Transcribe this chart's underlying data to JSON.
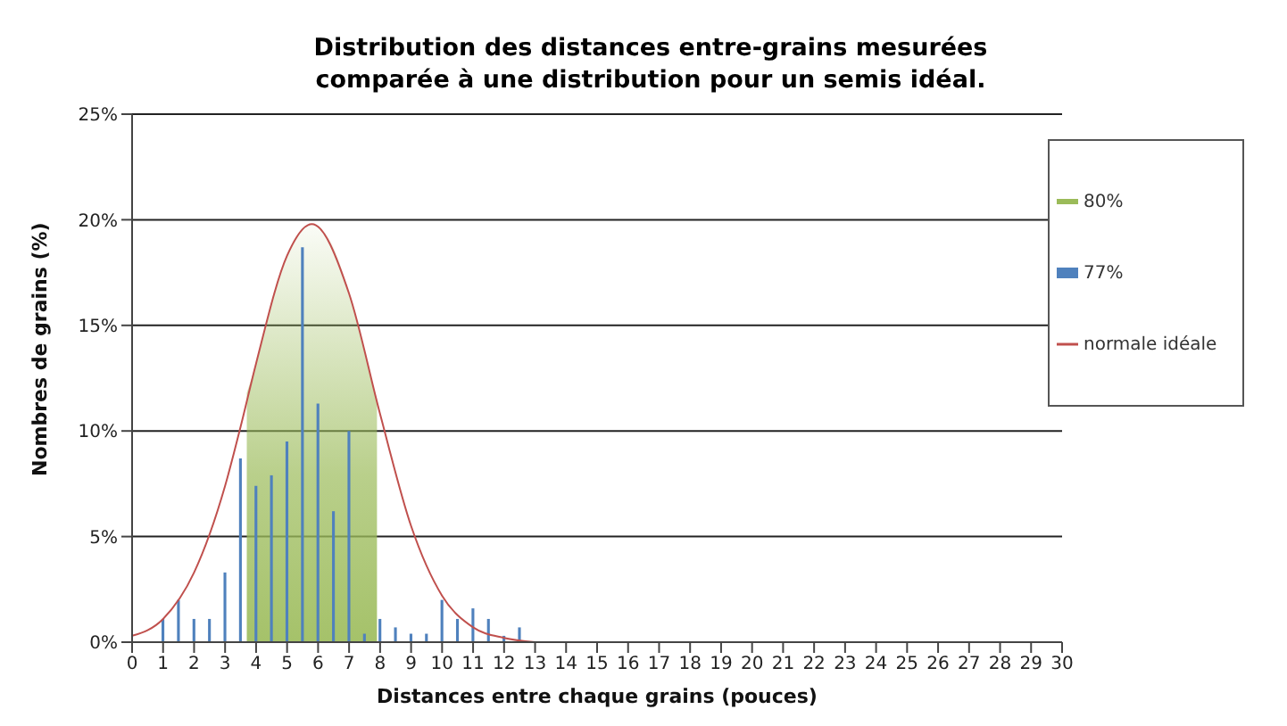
{
  "chart_data": {
    "type": "bar",
    "title": "Distribution des distances entre-grains mesurées comparée à une distribution pour un semis idéal.",
    "xlabel": "Distances entre chaque grains (pouces)",
    "ylabel": "Nombres de grains (%)",
    "series": [
      {
        "name": "80%",
        "type": "area",
        "color": "#9bbb59",
        "x": [
          3.7,
          4,
          4.5,
          5,
          5.5,
          5.8,
          6.5,
          7,
          7.5,
          7.9
        ],
        "values": [
          11.8,
          13.2,
          16.1,
          18.3,
          19.5,
          19.8,
          18.7,
          16.5,
          13.8,
          11.4
        ]
      },
      {
        "name": "77%",
        "color": "#4f81bd",
        "x": [
          1,
          1.5,
          2,
          2.5,
          3,
          3.5,
          4,
          4.5,
          5,
          5.5,
          6,
          6.5,
          7,
          7.5,
          8,
          8.5,
          9,
          9.5,
          10,
          10.5,
          11,
          11.5,
          12,
          12.5
        ],
        "values": [
          1.1,
          2.0,
          1.1,
          1.1,
          3.3,
          8.7,
          7.4,
          7.9,
          9.5,
          18.7,
          11.3,
          6.2,
          10.0,
          0.4,
          1.1,
          0.7,
          0.4,
          0.4,
          2.0,
          1.1,
          1.6,
          1.1,
          0.3,
          0.7
        ]
      },
      {
        "name": "normale idéale",
        "type": "line",
        "color": "#c0504d",
        "x": [
          0,
          1,
          2,
          3,
          3.5,
          4,
          5,
          5.8,
          7,
          8,
          9,
          10,
          11,
          12,
          13
        ],
        "values": [
          0.3,
          1.1,
          3.3,
          7.4,
          10.2,
          13.2,
          18.3,
          19.8,
          16.5,
          10.8,
          5.5,
          2.2,
          0.7,
          0.2,
          0.0
        ]
      }
    ],
    "xlim": [
      0,
      30
    ],
    "xticks": [
      0,
      1,
      2,
      3,
      4,
      5,
      6,
      7,
      8,
      9,
      10,
      11,
      12,
      13,
      14,
      15,
      16,
      17,
      18,
      19,
      20,
      21,
      22,
      23,
      24,
      25,
      26,
      27,
      28,
      29,
      30
    ],
    "ylim": [
      0,
      25
    ],
    "yticks": [
      {
        "value": 0,
        "label": "0%"
      },
      {
        "value": 5,
        "label": "5%"
      },
      {
        "value": 10,
        "label": "10%"
      },
      {
        "value": 15,
        "label": "15%"
      },
      {
        "value": 20,
        "label": "20%"
      },
      {
        "value": 25,
        "label": "25%"
      }
    ],
    "grid": "y",
    "legend": "top right",
    "marker": "none"
  }
}
